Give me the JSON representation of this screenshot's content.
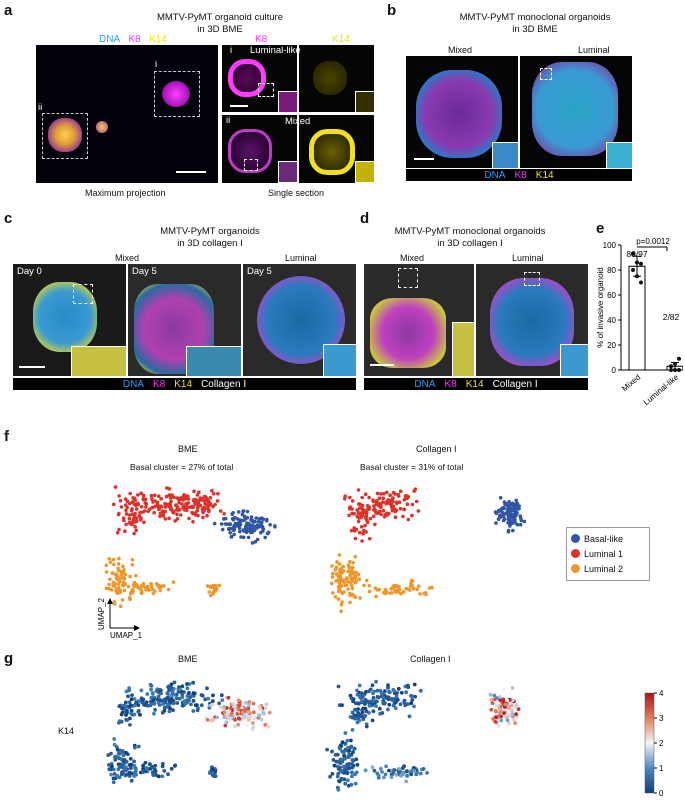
{
  "panel_labels": {
    "a": "a",
    "b": "b",
    "c": "c",
    "d": "d",
    "e": "e",
    "f": "f",
    "g": "g"
  },
  "a": {
    "title_line1": "MMTV-PyMT organoid culture",
    "title_line2": "in 3D BME",
    "legend": {
      "dna": "DNA",
      "k8": "K8",
      "k14": "K14"
    },
    "k8_label": "K8",
    "k14_label": "K14",
    "roman_i": "i",
    "roman_ii": "ii",
    "luminal_like": "Luminal-like",
    "mixed": "Mixed",
    "max_projection": "Maximum projection",
    "single_section": "Single section"
  },
  "b": {
    "title_line1": "MMTV-PyMT monoclonal organoids",
    "title_line2": "in 3D BME",
    "mixed": "Mixed",
    "luminal": "Luminal",
    "legend": {
      "dna": "DNA",
      "k8": "K8",
      "k14": "K14"
    }
  },
  "c": {
    "title_line1": "MMTV-PyMT organoids",
    "title_line2": "in 3D collagen I",
    "mixed": "Mixed",
    "luminal": "Luminal",
    "day0": "Day 0",
    "day5a": "Day 5",
    "day5b": "Day 5",
    "legend": {
      "dna": "DNA",
      "k8": "K8",
      "k14": "K14",
      "collagen": "Collagen I"
    }
  },
  "d": {
    "title_line1": "MMTV-PyMT monoclonal organoids",
    "title_line2": "in 3D collagen I",
    "mixed": "Mixed",
    "luminal": "Luminal",
    "legend": {
      "dna": "DNA",
      "k8": "K8",
      "k14": "K14",
      "collagen": "Collagen I"
    }
  },
  "chart_data": [
    {
      "type": "bar",
      "panel": "e",
      "categories": [
        "Mixed",
        "Luminal-like"
      ],
      "values": [
        83,
        3
      ],
      "points": [
        [
          93,
          86,
          85,
          80,
          75,
          70
        ],
        [
          0,
          0,
          0,
          3,
          5,
          9
        ]
      ],
      "error": [
        8,
        3
      ],
      "annotations": [
        "80/97",
        "2/82",
        "p=0.0012"
      ],
      "ylabel": "% of invasive organoid",
      "ylim": [
        0,
        100
      ],
      "yticks": [
        0,
        20,
        40,
        60,
        80,
        100
      ]
    },
    {
      "type": "scatter",
      "panel": "f",
      "titles": [
        "BME",
        "Collagen I"
      ],
      "subtitles": [
        "Basal cluster = 27% of total",
        "Basal cluster = 31% of total"
      ],
      "xlabel": "UMAP_1",
      "ylabel": "UMAP_2",
      "legend": [
        {
          "name": "Basal-like",
          "color": "#2f55a4"
        },
        {
          "name": "Luminal 1",
          "color": "#e0302a"
        },
        {
          "name": "Luminal 2",
          "color": "#f0952a"
        }
      ]
    },
    {
      "type": "scatter",
      "panel": "g",
      "titles": [
        "BME",
        "Collagen I"
      ],
      "row_label": "K14",
      "colorbar": {
        "ticks": [
          0,
          1,
          2,
          3,
          4
        ],
        "colors": [
          "#0d3e7a",
          "#4a8ac4",
          "#f4f4f4",
          "#e47b5c",
          "#a8161f"
        ]
      }
    }
  ]
}
